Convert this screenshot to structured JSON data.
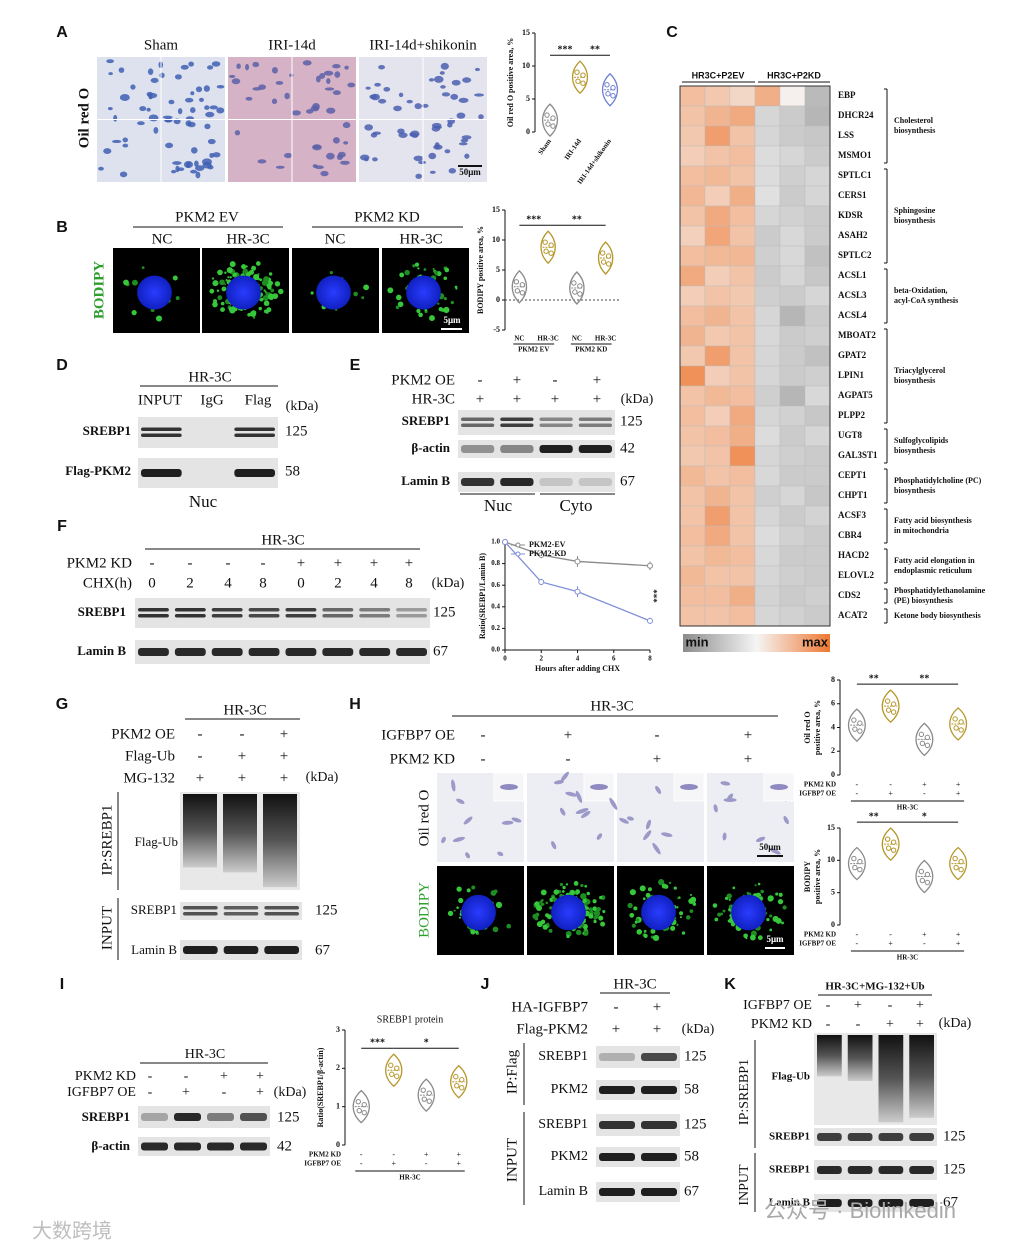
{
  "figure": {
    "A": {
      "label": "A",
      "stain": "Oil red O",
      "groups": [
        "Sham",
        "IRI-14d",
        "IRI-14d+shikonin"
      ],
      "scale_bar": "50μm",
      "chart": {
        "type": "violin",
        "ylabel": "Oil red O positive area, %",
        "categories": [
          "Sham",
          "IRI-14d",
          "IRI-14d+shikonin"
        ],
        "values": [
          1.8,
          8.3,
          6.4
        ],
        "colors": [
          "#8a8a8a",
          "#b5972a",
          "#6f7fd0"
        ],
        "ylim": [
          0,
          15
        ],
        "yticks": [
          0,
          5,
          10,
          15
        ],
        "significance": [
          "***",
          "**"
        ]
      }
    },
    "B": {
      "label": "B",
      "groups": [
        "PKM2 EV",
        "PKM2 KD"
      ],
      "conditions": [
        "NC",
        "HR-3C",
        "NC",
        "HR-3C"
      ],
      "stain": "BODIPY",
      "scale_bar": "5μm",
      "chart": {
        "type": "violin",
        "ylabel": "BODIPY positive area, %",
        "categories": [
          "NC",
          "HR-3C",
          "NC",
          "HR-3C"
        ],
        "groups": [
          "PKM2 EV",
          "PKM2 KD"
        ],
        "values": [
          2.2,
          8.8,
          2.0,
          7.0
        ],
        "colors": [
          "#8a8a8a",
          "#b5972a",
          "#8a8a8a",
          "#b5972a"
        ],
        "ylim": [
          -5,
          15
        ],
        "yticks": [
          -5,
          0,
          5,
          10,
          15
        ],
        "significance": [
          "***",
          "**"
        ]
      }
    },
    "C": {
      "label": "C",
      "groups": [
        "HR3C+P2EV",
        "HR3C+P2KD"
      ],
      "legend": {
        "min": "min",
        "max": "max"
      },
      "pathways": [
        {
          "label": [
            "Cholesterol",
            "biosynthesis"
          ],
          "genes": [
            {
              "name": "EBP",
              "values": [
                0.72,
                0.68,
                0.62,
                0.78,
                0.52,
                0.22
              ]
            },
            {
              "name": "DHCR24",
              "values": [
                0.7,
                0.76,
                0.8,
                0.35,
                0.3,
                0.2
              ]
            },
            {
              "name": "LSS",
              "values": [
                0.68,
                0.85,
                0.7,
                0.35,
                0.3,
                0.28
              ]
            },
            {
              "name": "MSMO1",
              "values": [
                0.66,
                0.7,
                0.72,
                0.38,
                0.35,
                0.3
              ]
            }
          ]
        },
        {
          "label": [
            "Sphingosine",
            "biosynthesis"
          ],
          "genes": [
            {
              "name": "SPTLC1",
              "values": [
                0.72,
                0.74,
                0.7,
                0.38,
                0.32,
                0.35
              ]
            },
            {
              "name": "CERS1",
              "values": [
                0.75,
                0.66,
                0.78,
                0.4,
                0.3,
                0.35
              ]
            },
            {
              "name": "KDSR",
              "values": [
                0.7,
                0.8,
                0.72,
                0.35,
                0.33,
                0.3
              ]
            },
            {
              "name": "ASAH2",
              "values": [
                0.65,
                0.82,
                0.7,
                0.3,
                0.36,
                0.3
              ]
            },
            {
              "name": "SPTLC2",
              "values": [
                0.72,
                0.74,
                0.75,
                0.32,
                0.36,
                0.25
              ]
            }
          ]
        },
        {
          "label": [
            "beta-Oxidation,",
            "acyl-CoA synthesis"
          ],
          "genes": [
            {
              "name": "ACSL1",
              "values": [
                0.8,
                0.66,
                0.7,
                0.3,
                0.35,
                0.28
              ]
            },
            {
              "name": "ACSL3",
              "values": [
                0.66,
                0.7,
                0.68,
                0.32,
                0.3,
                0.35
              ]
            },
            {
              "name": "ACSL4",
              "values": [
                0.72,
                0.76,
                0.7,
                0.35,
                0.2,
                0.3
              ]
            }
          ]
        },
        {
          "label": [
            "Triacylglycerol",
            "biosynthesis"
          ],
          "genes": [
            {
              "name": "MBOAT2",
              "values": [
                0.76,
                0.68,
                0.7,
                0.36,
                0.3,
                0.32
              ]
            },
            {
              "name": "GPAT2",
              "values": [
                0.68,
                0.85,
                0.7,
                0.35,
                0.3,
                0.25
              ]
            },
            {
              "name": "LPIN1",
              "values": [
                0.9,
                0.66,
                0.7,
                0.35,
                0.3,
                0.32
              ]
            },
            {
              "name": "AGPAT5",
              "values": [
                0.7,
                0.74,
                0.72,
                0.32,
                0.2,
                0.36
              ]
            },
            {
              "name": "PLPP2",
              "values": [
                0.72,
                0.66,
                0.8,
                0.35,
                0.33,
                0.28
              ]
            }
          ]
        },
        {
          "label": [
            "Sulfoglycolipids",
            "biosynthesis"
          ],
          "genes": [
            {
              "name": "UGT8",
              "values": [
                0.7,
                0.72,
                0.78,
                0.38,
                0.3,
                0.35
              ]
            },
            {
              "name": "GAL3ST1",
              "values": [
                0.68,
                0.7,
                0.9,
                0.35,
                0.32,
                0.3
              ]
            }
          ]
        },
        {
          "label": [
            "Phosphatidylcholine (PC)",
            "biosynthesis"
          ],
          "genes": [
            {
              "name": "CEPT1",
              "values": [
                0.74,
                0.7,
                0.72,
                0.36,
                0.3,
                0.3
              ]
            },
            {
              "name": "CHPT1",
              "values": [
                0.7,
                0.76,
                0.7,
                0.32,
                0.35,
                0.28
              ]
            }
          ]
        },
        {
          "label": [
            "Fatty acid biosynthesis",
            "in mitochondria"
          ],
          "genes": [
            {
              "name": "ACSF3",
              "values": [
                0.7,
                0.85,
                0.7,
                0.35,
                0.3,
                0.34
              ]
            },
            {
              "name": "CBR4",
              "values": [
                0.72,
                0.8,
                0.7,
                0.38,
                0.33,
                0.3
              ]
            }
          ]
        },
        {
          "label": [
            "Fatty acid elongation in",
            "endoplasmic reticulum"
          ],
          "genes": [
            {
              "name": "HACD2",
              "values": [
                0.7,
                0.74,
                0.72,
                0.36,
                0.3,
                0.3
              ]
            },
            {
              "name": "ELOVL2",
              "values": [
                0.74,
                0.7,
                0.7,
                0.35,
                0.32,
                0.3
              ]
            }
          ]
        },
        {
          "label": [
            "Phosphatidylethanolamine",
            "(PE) biosynthesis"
          ],
          "genes": [
            {
              "name": "CDS2",
              "values": [
                0.72,
                0.72,
                0.78,
                0.34,
                0.3,
                0.32
              ]
            }
          ]
        },
        {
          "label": [
            "Ketone body biosynthesis"
          ],
          "genes": [
            {
              "name": "ACAT2",
              "values": [
                0.7,
                0.7,
                0.72,
                0.35,
                0.33,
                0.3
              ]
            }
          ]
        }
      ]
    },
    "D": {
      "label": "D",
      "cell": "HR-3C",
      "lanes": [
        "INPUT",
        "IgG",
        "Flag"
      ],
      "unit": "(kDa)",
      "rows": [
        {
          "name": "SREBP1",
          "kda": 125
        },
        {
          "name": "Flag-PKM2",
          "kda": 58
        }
      ],
      "fraction": "Nuc"
    },
    "E": {
      "label": "E",
      "treatments": [
        {
          "name": "PKM2 OE",
          "signs": [
            "-",
            "+",
            "-",
            "+"
          ]
        },
        {
          "name": "HR-3C",
          "signs": [
            "+",
            "+",
            "+",
            "+"
          ]
        }
      ],
      "unit": "(kDa)",
      "rows": [
        {
          "name": "SREBP1",
          "kda": 125
        },
        {
          "name": "β-actin",
          "kda": 42
        },
        {
          "name": "Lamin B",
          "kda": 67
        }
      ],
      "fractions": [
        "Nuc",
        "Cyto"
      ]
    },
    "F": {
      "label": "F",
      "cell": "HR-3C",
      "treatments": [
        {
          "name": "PKM2 KD",
          "signs": [
            "-",
            "-",
            "-",
            "-",
            "+",
            "+",
            "+",
            "+"
          ]
        },
        {
          "name": "CHX(h)",
          "signs": [
            "0",
            "2",
            "4",
            "8",
            "0",
            "2",
            "4",
            "8"
          ]
        }
      ],
      "unit": "(kDa)",
      "rows": [
        {
          "name": "SREBP1",
          "kda": 125
        },
        {
          "name": "Lamin B",
          "kda": 67
        }
      ],
      "chart": {
        "type": "line",
        "xlabel": "Hours after adding CHX",
        "ylabel": "Ratio(SREBP1/Lamin B)",
        "x": [
          0,
          2,
          4,
          8
        ],
        "series": [
          {
            "name": "PKM2-EV",
            "color": "#8a8a8a",
            "values": [
              1.0,
              0.88,
              0.82,
              0.78
            ],
            "errors": [
              0,
              0.03,
              0.05,
              0.04
            ]
          },
          {
            "name": "PKM2-KD",
            "color": "#7f8fd8",
            "values": [
              1.0,
              0.63,
              0.54,
              0.27
            ],
            "errors": [
              0,
              0.03,
              0.05,
              0.03
            ]
          }
        ],
        "xlim": [
          0,
          8
        ],
        "xticks": [
          0,
          2,
          4,
          6,
          8
        ],
        "ylim": [
          0,
          1
        ],
        "yticks": [
          {
            "value": 0,
            "label": "0.0"
          },
          0.2,
          0.4,
          0.6,
          0.8,
          {
            "value": 1,
            "label": "1.0"
          }
        ],
        "significance": "***",
        "legend": "upper left"
      }
    },
    "G": {
      "label": "G",
      "cell": "HR-3C",
      "treatments": [
        {
          "name": "PKM2 OE",
          "signs": [
            "-",
            "-",
            "+"
          ]
        },
        {
          "name": "Flag-Ub",
          "signs": [
            "-",
            "+",
            "+"
          ]
        },
        {
          "name": "MG-132",
          "signs": [
            "+",
            "+",
            "+"
          ]
        }
      ],
      "unit": "(kDa)",
      "sections": [
        {
          "name": "IP:SREBP1",
          "rows": [
            {
              "name": "Flag-Ub"
            }
          ]
        },
        {
          "name": "INPUT",
          "rows": [
            {
              "name": "SREBP1",
              "kda": 125
            },
            {
              "name": "Lamin B",
              "kda": 67
            }
          ]
        }
      ]
    },
    "H": {
      "label": "H",
      "cell": "HR-3C",
      "treatments": [
        {
          "name": "IGFBP7 OE",
          "signs": [
            "-",
            "+",
            "-",
            "+"
          ]
        },
        {
          "name": "PKM2 KD",
          "signs": [
            "-",
            "-",
            "+",
            "+"
          ]
        }
      ],
      "stains": [
        "Oil red O",
        "BODIPY"
      ],
      "scale_bars": [
        "50μm",
        "5μm"
      ],
      "charts": [
        {
          "type": "violin",
          "ylabel": [
            "Oil red O",
            "positive area, %"
          ],
          "conditions": [
            {
              "name": "PKM2 KD",
              "signs": [
                "-",
                "-",
                "+",
                "+"
              ]
            },
            {
              "name": "IGFBP7 OE",
              "signs": [
                "-",
                "+",
                "-",
                "+"
              ]
            }
          ],
          "group": "HR-3C",
          "values": [
            4.2,
            5.8,
            3.0,
            4.3
          ],
          "colors": [
            "#8a8a8a",
            "#b5972a",
            "#8a8a8a",
            "#b5972a"
          ],
          "ylim": [
            0,
            8
          ],
          "yticks": [
            0,
            2,
            4,
            6,
            8
          ],
          "significance": [
            "**",
            "**"
          ]
        },
        {
          "type": "violin",
          "ylabel": [
            "BODIPY",
            "positive area, %"
          ],
          "conditions": [
            {
              "name": "PKM2 KD",
              "signs": [
                "-",
                "-",
                "+",
                "+"
              ]
            },
            {
              "name": "IGFBP7 OE",
              "signs": [
                "-",
                "+",
                "-",
                "+"
              ]
            }
          ],
          "group": "HR-3C",
          "values": [
            9.5,
            12.5,
            7.5,
            9.5
          ],
          "colors": [
            "#8a8a8a",
            "#b5972a",
            "#8a8a8a",
            "#b5972a"
          ],
          "ylim": [
            0,
            15
          ],
          "yticks": [
            0,
            5,
            10,
            15
          ],
          "significance": [
            "**",
            "*"
          ]
        }
      ]
    },
    "I": {
      "label": "I",
      "cell": "HR-3C",
      "treatments": [
        {
          "name": "PKM2 KD",
          "signs": [
            "-",
            "-",
            "+",
            "+"
          ]
        },
        {
          "name": "IGFBP7 OE",
          "signs": [
            "-",
            "+",
            "-",
            "+"
          ]
        }
      ],
      "unit": "(kDa)",
      "rows": [
        {
          "name": "SREBP1",
          "kda": 125
        },
        {
          "name": "β-actin",
          "kda": 42
        }
      ],
      "chart": {
        "type": "violin",
        "title": "SREBP1 protein",
        "ylabel": "Ratio(SREBP1/β-actin)",
        "conditions": [
          {
            "name": "PKM2 KD",
            "signs": [
              "-",
              "-",
              "+",
              "+"
            ]
          },
          {
            "name": "IGFBP7 OE",
            "signs": [
              "-",
              "+",
              "-",
              "+"
            ]
          }
        ],
        "group": "HR-3C",
        "values": [
          1.0,
          1.95,
          1.3,
          1.65
        ],
        "colors": [
          "#8a8a8a",
          "#b5972a",
          "#8a8a8a",
          "#b5972a"
        ],
        "ylim": [
          0,
          3
        ],
        "yticks": [
          0,
          1,
          2,
          3
        ],
        "significance": [
          "***",
          "*"
        ]
      }
    },
    "J": {
      "label": "J",
      "cell": "HR-3C",
      "treatments": [
        {
          "name": "HA-IGFBP7",
          "signs": [
            "-",
            "+"
          ]
        },
        {
          "name": "Flag-PKM2",
          "signs": [
            "+",
            "+"
          ]
        }
      ],
      "unit": "(kDa)",
      "sections": [
        {
          "name": "IP:Flag",
          "rows": [
            {
              "name": "SREBP1",
              "kda": 125
            },
            {
              "name": "PKM2",
              "kda": 58
            }
          ]
        },
        {
          "name": "INPUT",
          "rows": [
            {
              "name": "SREBP1",
              "kda": 125
            },
            {
              "name": "PKM2",
              "kda": 58
            },
            {
              "name": "Lamin B",
              "kda": 67
            }
          ]
        }
      ]
    },
    "K": {
      "label": "K",
      "cell": "HR-3C+MG-132+Ub",
      "treatments": [
        {
          "name": "IGFBP7 OE",
          "signs": [
            "-",
            "+",
            "-",
            "+"
          ]
        },
        {
          "name": "PKM2 KD",
          "signs": [
            "-",
            "-",
            "+",
            "+"
          ]
        }
      ],
      "unit": "(kDa)",
      "sections": [
        {
          "name": "IP:SREBP1",
          "rows": [
            {
              "name": "Flag-Ub"
            },
            {
              "name": "SREBP1",
              "kda": 125
            }
          ]
        },
        {
          "name": "INPUT",
          "rows": [
            {
              "name": "SREBP1",
              "kda": 125
            },
            {
              "name": "Lamin B",
              "kda": 67
            }
          ]
        }
      ]
    },
    "watermark": [
      "公众号 · Biolinkedin",
      "大数跨境"
    ]
  }
}
